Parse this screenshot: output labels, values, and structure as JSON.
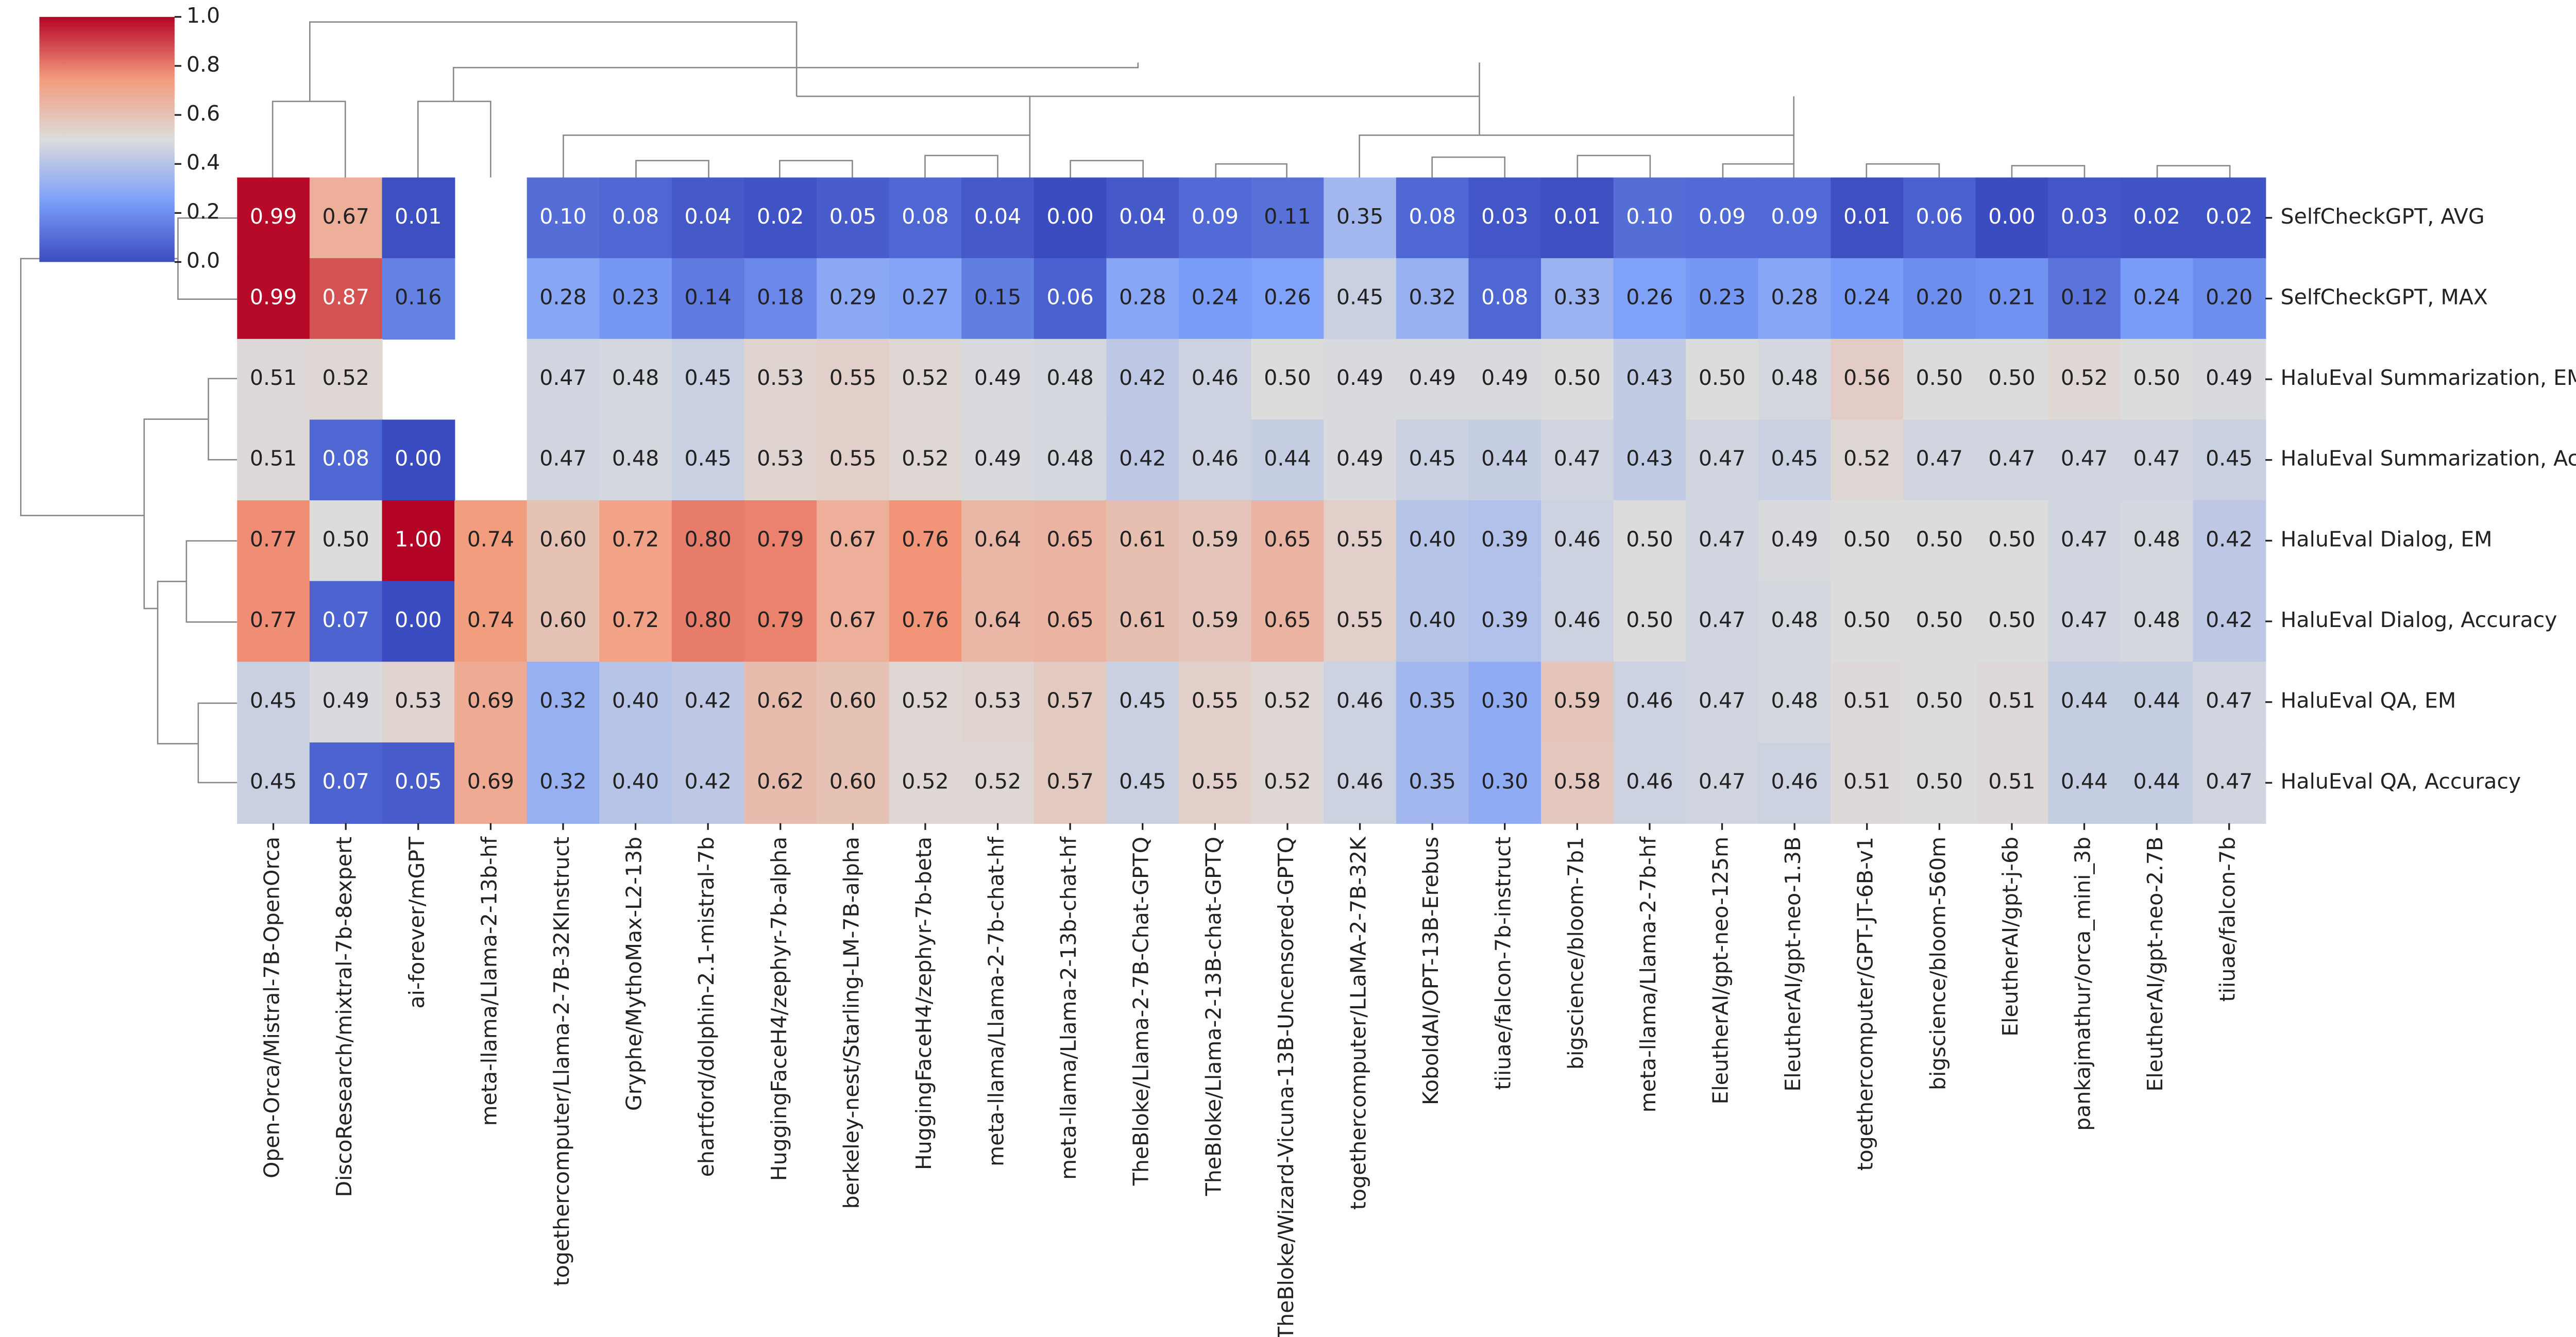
{
  "chart_data": {
    "type": "heatmap",
    "colormap": "coolwarm",
    "rows": [
      "SelfCheckGPT, AVG",
      "SelfCheckGPT, MAX",
      "HaluEval Summarization, EM",
      "HaluEval Summarization, Accuracy",
      "HaluEval Dialog, EM",
      "HaluEval Dialog, Accuracy",
      "HaluEval QA, EM",
      "HaluEval QA, Accuracy"
    ],
    "columns": [
      "Open-Orca/Mistral-7B-OpenOrca",
      "DiscoResearch/mixtral-7b-8expert",
      "ai-forever/mGPT",
      "meta-llama/Llama-2-13b-hf",
      "togethercomputer/Llama-2-7B-32KInstruct",
      "Gryphe/MythoMax-L2-13b",
      "ehartford/dolphin-2.1-mistral-7b",
      "HuggingFaceH4/zephyr-7b-alpha",
      "berkeley-nest/Starling-LM-7B-alpha",
      "HuggingFaceH4/zephyr-7b-beta",
      "meta-llama/Llama-2-7b-chat-hf",
      "meta-llama/Llama-2-13b-chat-hf",
      "TheBloke/Llama-2-7B-Chat-GPTQ",
      "TheBloke/Llama-2-13B-chat-GPTQ",
      "TheBloke/Wizard-Vicuna-13B-Uncensored-GPTQ",
      "togethercomputer/LLaMA-2-7B-32K",
      "KoboldAI/OPT-13B-Erebus",
      "tiiuae/falcon-7b-instruct",
      "bigscience/bloom-7b1",
      "meta-llama/Llama-2-7b-hf",
      "EleutherAI/gpt-neo-125m",
      "EleutherAI/gpt-neo-1.3B",
      "togethercomputer/GPT-JT-6B-v1",
      "bigscience/bloom-560m",
      "EleutherAI/gpt-j-6b",
      "pankajmathur/orca_mini_3b",
      "EleutherAI/gpt-neo-2.7B",
      "tiiuae/falcon-7b"
    ],
    "values": [
      [
        0.99,
        0.67,
        0.01,
        null,
        0.1,
        0.08,
        0.04,
        0.02,
        0.05,
        0.08,
        0.04,
        0.0,
        0.04,
        0.09,
        0.11,
        0.35,
        0.08,
        0.03,
        0.01,
        0.1,
        0.09,
        0.09,
        0.01,
        0.06,
        0.0,
        0.03,
        0.02,
        0.02
      ],
      [
        0.99,
        0.87,
        0.16,
        null,
        0.28,
        0.23,
        0.14,
        0.18,
        0.29,
        0.27,
        0.15,
        0.06,
        0.28,
        0.24,
        0.26,
        0.45,
        0.32,
        0.08,
        0.33,
        0.26,
        0.23,
        0.28,
        0.24,
        0.2,
        0.21,
        0.12,
        0.24,
        0.2
      ],
      [
        0.51,
        0.52,
        null,
        null,
        0.47,
        0.48,
        0.45,
        0.53,
        0.55,
        0.52,
        0.49,
        0.48,
        0.42,
        0.46,
        0.5,
        0.49,
        0.49,
        0.49,
        0.5,
        0.43,
        0.5,
        0.48,
        0.56,
        0.5,
        0.5,
        0.52,
        0.5,
        0.49
      ],
      [
        0.51,
        0.08,
        0.0,
        null,
        0.47,
        0.48,
        0.45,
        0.53,
        0.55,
        0.52,
        0.49,
        0.48,
        0.42,
        0.46,
        0.44,
        0.49,
        0.45,
        0.44,
        0.47,
        0.43,
        0.47,
        0.45,
        0.52,
        0.47,
        0.47,
        0.47,
        0.47,
        0.45
      ],
      [
        0.77,
        0.5,
        1.0,
        0.74,
        0.6,
        0.72,
        0.8,
        0.79,
        0.67,
        0.76,
        0.64,
        0.65,
        0.61,
        0.59,
        0.65,
        0.55,
        0.4,
        0.39,
        0.46,
        0.5,
        0.47,
        0.49,
        0.5,
        0.5,
        0.5,
        0.47,
        0.48,
        0.42
      ],
      [
        0.77,
        0.07,
        0.0,
        0.74,
        0.6,
        0.72,
        0.8,
        0.79,
        0.67,
        0.76,
        0.64,
        0.65,
        0.61,
        0.59,
        0.65,
        0.55,
        0.4,
        0.39,
        0.46,
        0.5,
        0.47,
        0.48,
        0.5,
        0.5,
        0.5,
        0.47,
        0.48,
        0.42
      ],
      [
        0.45,
        0.49,
        0.53,
        0.69,
        0.32,
        0.4,
        0.42,
        0.62,
        0.6,
        0.52,
        0.53,
        0.57,
        0.45,
        0.55,
        0.52,
        0.46,
        0.35,
        0.3,
        0.59,
        0.46,
        0.47,
        0.48,
        0.51,
        0.5,
        0.51,
        0.44,
        0.44,
        0.47
      ],
      [
        0.45,
        0.07,
        0.05,
        0.69,
        0.32,
        0.4,
        0.42,
        0.62,
        0.6,
        0.52,
        0.52,
        0.57,
        0.45,
        0.55,
        0.52,
        0.46,
        0.35,
        0.3,
        0.58,
        0.46,
        0.47,
        0.46,
        0.51,
        0.5,
        0.51,
        0.44,
        0.44,
        0.47
      ]
    ],
    "value_labels": [
      [
        "0.99",
        "0.67",
        "0.01",
        null,
        "0.10",
        "0.08",
        "0.04",
        "0.02",
        "0.05",
        "0.08",
        "0.04",
        "0.00",
        "0.04",
        "0.09",
        "0.11",
        "0.35",
        "0.08",
        "0.03",
        "0.01",
        "0.10",
        "0.09",
        "0.09",
        "0.01",
        "0.06",
        "0.00",
        "0.03",
        "0.02",
        "0.02"
      ],
      [
        "0.99",
        "0.87",
        "0.16",
        null,
        "0.28",
        "0.23",
        "0.14",
        "0.18",
        "0.29",
        "0.27",
        "0.15",
        "0.06",
        "0.28",
        "0.24",
        "0.26",
        "0.45",
        "0.32",
        "0.08",
        "0.33",
        "0.26",
        "0.23",
        "0.28",
        "0.24",
        "0.20",
        "0.21",
        "0.12",
        "0.24",
        "0.20"
      ],
      [
        "0.51",
        "0.52",
        null,
        null,
        "0.47",
        "0.48",
        "0.45",
        "0.53",
        "0.55",
        "0.52",
        "0.49",
        "0.48",
        "0.42",
        "0.46",
        "0.50",
        "0.49",
        "0.49",
        "0.49",
        "0.50",
        "0.43",
        "0.50",
        "0.48",
        "0.56",
        "0.50",
        "0.50",
        "0.52",
        "0.50",
        "0.49"
      ],
      [
        "0.51",
        "0.08",
        "0.00",
        null,
        "0.47",
        "0.48",
        "0.45",
        "0.53",
        "0.55",
        "0.52",
        "0.49",
        "0.48",
        "0.42",
        "0.46",
        "0.44",
        "0.49",
        "0.45",
        "0.44",
        "0.47",
        "0.43",
        "0.47",
        "0.45",
        "0.52",
        "0.47",
        "0.47",
        "0.47",
        "0.47",
        "0.45"
      ],
      [
        "0.77",
        "0.50",
        "1.00",
        "0.74",
        "0.60",
        "0.72",
        "0.80",
        "0.79",
        "0.67",
        "0.76",
        "0.64",
        "0.65",
        "0.61",
        "0.59",
        "0.65",
        "0.55",
        "0.40",
        "0.39",
        "0.46",
        "0.50",
        "0.47",
        "0.49",
        "0.50",
        "0.50",
        "0.50",
        "0.47",
        "0.48",
        "0.42"
      ],
      [
        "0.77",
        "0.07",
        "0.00",
        "0.74",
        "0.60",
        "0.72",
        "0.80",
        "0.79",
        "0.67",
        "0.76",
        "0.64",
        "0.65",
        "0.61",
        "0.59",
        "0.65",
        "0.55",
        "0.40",
        "0.39",
        "0.46",
        "0.50",
        "0.47",
        "0.48",
        "0.50",
        "0.50",
        "0.50",
        "0.47",
        "0.48",
        "0.42"
      ],
      [
        "0.45",
        "0.49",
        "0.53",
        "0.69",
        "0.32",
        "0.40",
        "0.42",
        "0.62",
        "0.60",
        "0.52",
        "0.53",
        "0.57",
        "0.45",
        "0.55",
        "0.52",
        "0.46",
        "0.35",
        "0.30",
        "0.59",
        "0.46",
        "0.47",
        "0.48",
        "0.51",
        "0.50",
        "0.51",
        "0.44",
        "0.44",
        "0.47"
      ],
      [
        "0.45",
        "0.07",
        "0.05",
        "0.69",
        "0.32",
        "0.40",
        "0.42",
        "0.62",
        "0.60",
        "0.52",
        "0.52",
        "0.57",
        "0.45",
        "0.55",
        "0.52",
        "0.46",
        "0.35",
        "0.30",
        "0.58",
        "0.46",
        "0.47",
        "0.46",
        "0.51",
        "0.50",
        "0.51",
        "0.44",
        "0.44",
        "0.47"
      ]
    ],
    "clim": [
      0,
      1
    ],
    "cticks": [
      {
        "value": 0,
        "label": "0.0"
      },
      0.2,
      0.4,
      0.6,
      0.8,
      {
        "value": 1,
        "label": "1.0"
      }
    ]
  }
}
